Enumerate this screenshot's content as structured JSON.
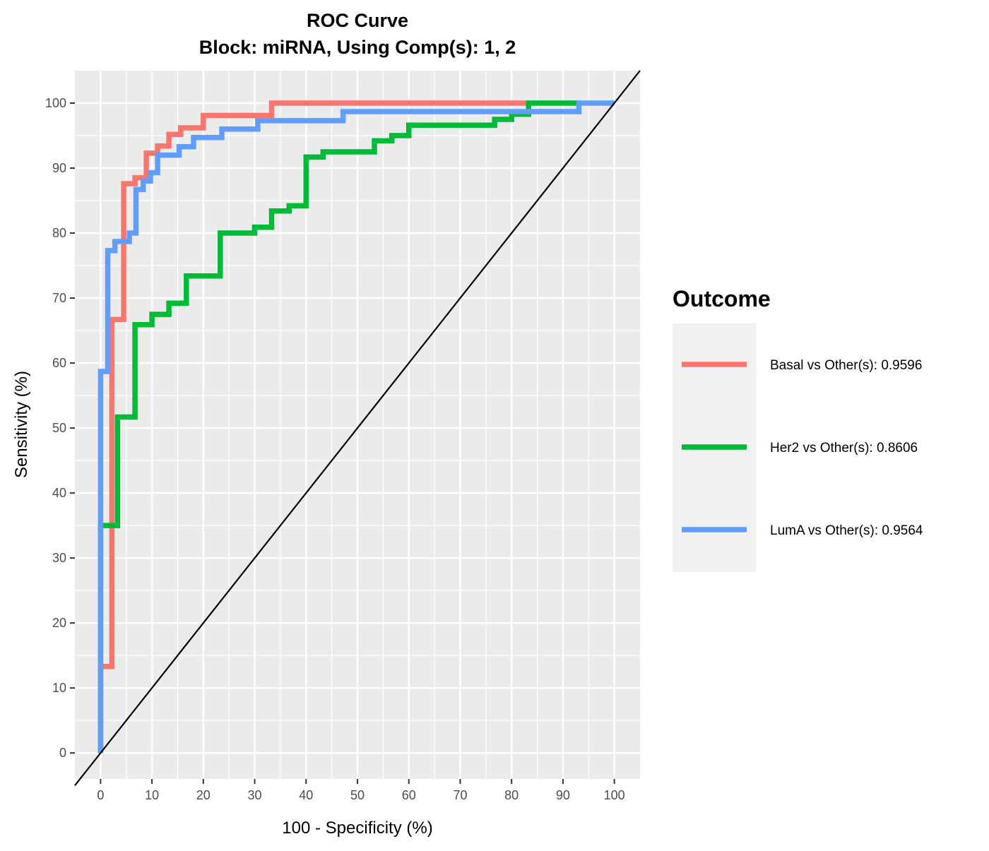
{
  "chart_data": {
    "type": "line",
    "title": "ROC Curve",
    "subtitle": "Block: miRNA, Using Comp(s): 1, 2",
    "xlabel": "100 - Specificity (%)",
    "ylabel": "Sensitivity (%)",
    "xlim": [
      -5,
      105
    ],
    "ylim": [
      -4,
      105
    ],
    "x_ticks": [
      0,
      10,
      20,
      30,
      40,
      50,
      60,
      70,
      80,
      90,
      100
    ],
    "y_ticks": [
      0,
      10,
      20,
      30,
      40,
      50,
      60,
      70,
      80,
      90,
      100
    ],
    "grid": true,
    "legend": {
      "title": "Outcome",
      "position": "right"
    },
    "reference_line": {
      "x": [
        -5,
        105
      ],
      "y": [
        -5,
        105
      ],
      "color": "#000000"
    },
    "series": [
      {
        "name": "Basal vs Other(s): 0.9596",
        "color": "#F8766D",
        "points": [
          [
            0,
            0
          ],
          [
            0,
            13.3
          ],
          [
            2.2,
            13.3
          ],
          [
            2.2,
            66.7
          ],
          [
            4.5,
            66.7
          ],
          [
            4.5,
            87.6
          ],
          [
            6.7,
            87.6
          ],
          [
            6.7,
            88.5
          ],
          [
            8.9,
            88.5
          ],
          [
            8.9,
            92.3
          ],
          [
            11.1,
            92.3
          ],
          [
            11.1,
            93.4
          ],
          [
            13.3,
            93.4
          ],
          [
            13.3,
            95.2
          ],
          [
            15.6,
            95.2
          ],
          [
            15.6,
            96.2
          ],
          [
            20,
            96.2
          ],
          [
            20,
            98.1
          ],
          [
            33.3,
            98.1
          ],
          [
            33.3,
            100
          ],
          [
            83.3,
            100
          ]
        ]
      },
      {
        "name": "Her2 vs Other(s): 0.8606",
        "color": "#00BA38",
        "points": [
          [
            0,
            0
          ],
          [
            0,
            35
          ],
          [
            3.3,
            35
          ],
          [
            3.3,
            51.7
          ],
          [
            6.7,
            51.7
          ],
          [
            6.7,
            65.9
          ],
          [
            10,
            65.9
          ],
          [
            10,
            67.5
          ],
          [
            13.3,
            67.5
          ],
          [
            13.3,
            69.2
          ],
          [
            16.7,
            69.2
          ],
          [
            16.7,
            73.4
          ],
          [
            23.3,
            73.4
          ],
          [
            23.3,
            80
          ],
          [
            30,
            80
          ],
          [
            30,
            80.9
          ],
          [
            33.3,
            80.9
          ],
          [
            33.3,
            83.4
          ],
          [
            36.7,
            83.4
          ],
          [
            36.7,
            84.2
          ],
          [
            40,
            84.2
          ],
          [
            40,
            91.7
          ],
          [
            43.3,
            91.7
          ],
          [
            43.3,
            92.5
          ],
          [
            53.3,
            92.5
          ],
          [
            53.3,
            94.2
          ],
          [
            56.7,
            94.2
          ],
          [
            56.7,
            95
          ],
          [
            60,
            95
          ],
          [
            60,
            96.6
          ],
          [
            76.7,
            96.6
          ],
          [
            76.7,
            97.5
          ],
          [
            80,
            97.5
          ],
          [
            80,
            98.3
          ],
          [
            83.3,
            98.3
          ],
          [
            83.3,
            100
          ],
          [
            93,
            100
          ]
        ]
      },
      {
        "name": "LumA vs Other(s): 0.9564",
        "color": "#619CFF",
        "points": [
          [
            0,
            0
          ],
          [
            0,
            58.7
          ],
          [
            1.4,
            58.7
          ],
          [
            1.4,
            77.3
          ],
          [
            2.8,
            77.3
          ],
          [
            2.8,
            78.7
          ],
          [
            5.6,
            78.7
          ],
          [
            5.6,
            80
          ],
          [
            6.9,
            80
          ],
          [
            6.9,
            86.7
          ],
          [
            8.3,
            86.7
          ],
          [
            8.3,
            88
          ],
          [
            9.7,
            88
          ],
          [
            9.7,
            89.3
          ],
          [
            11.1,
            89.3
          ],
          [
            11.1,
            92
          ],
          [
            15.3,
            92
          ],
          [
            15.3,
            93.3
          ],
          [
            18.1,
            93.3
          ],
          [
            18.1,
            94.7
          ],
          [
            23.6,
            94.7
          ],
          [
            23.6,
            96
          ],
          [
            30.6,
            96
          ],
          [
            30.6,
            97.3
          ],
          [
            47.2,
            97.3
          ],
          [
            47.2,
            98.7
          ],
          [
            93.1,
            98.7
          ],
          [
            93.1,
            100
          ],
          [
            100,
            100
          ]
        ]
      }
    ]
  }
}
